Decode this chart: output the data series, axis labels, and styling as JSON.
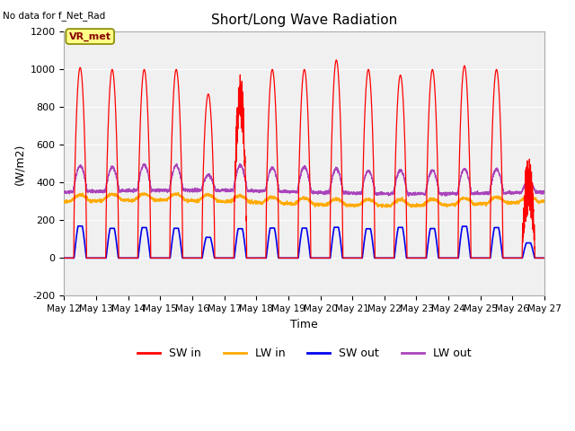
{
  "title": "Short/Long Wave Radiation",
  "top_left_text": "No data for f_Net_Rad",
  "legend_label_text": "VR_met",
  "xlabel": "Time",
  "ylabel": "(W/m2)",
  "ylim": [
    -200,
    1200
  ],
  "yticks": [
    -200,
    0,
    200,
    400,
    600,
    800,
    1000,
    1200
  ],
  "xtick_labels": [
    "May 12",
    "May 13",
    "May 14",
    "May 15",
    "May 16",
    "May 17",
    "May 18",
    "May 19",
    "May 20",
    "May 21",
    "May 22",
    "May 23",
    "May 24",
    "May 25",
    "May 26",
    "May 27"
  ],
  "colors": {
    "SW_in": "#ff0000",
    "LW_in": "#ffaa00",
    "SW_out": "#0000ee",
    "LW_out": "#aa44bb"
  },
  "background_color": "#e8e8e8",
  "plot_bg_color": "#f0f0f0",
  "legend_box_facecolor": "#ffff88",
  "legend_box_edgecolor": "#888800",
  "legend_text_color": "#880000",
  "num_days": 15,
  "points_per_day": 240
}
